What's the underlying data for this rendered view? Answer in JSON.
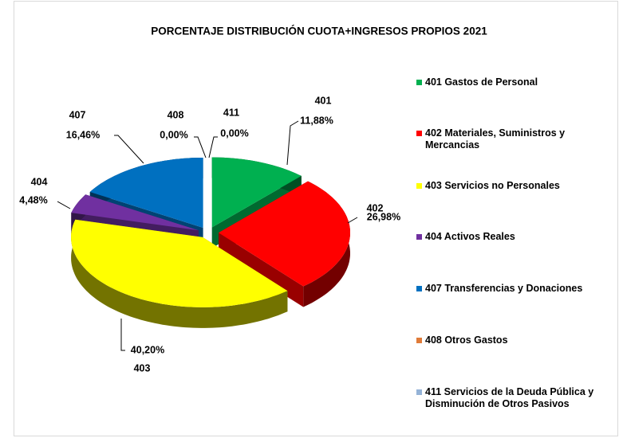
{
  "chart_data": {
    "type": "pie",
    "title": "PORCENTAJE DISTRIBUCIÓN CUOTA+INGRESOS PROPIOS 2021",
    "categories": [
      "401 Gastos de Personal",
      "402 Materiales, Suministros y Mercancias",
      "403 Servicios no Personales",
      "404 Activos Reales",
      "407 Transferencias y Donaciones",
      "408 Otros Gastos",
      "411 Servicios de la Deuda Pública y Disminución de Otros Pasivos"
    ],
    "codes": [
      "401",
      "402",
      "403",
      "404",
      "407",
      "408",
      "411"
    ],
    "values": [
      11.88,
      26.98,
      40.2,
      4.48,
      16.46,
      0.0,
      0.0
    ],
    "value_labels": [
      "11,88%",
      "26,98%",
      "40,20%",
      "4,48%",
      "16,46%",
      "0,00%",
      "0,00%"
    ],
    "colors": [
      "#00b050",
      "#ff0000",
      "#ffff00",
      "#7030a0",
      "#0070c0",
      "#e07b39",
      "#95b3d7"
    ],
    "legend": "right"
  }
}
